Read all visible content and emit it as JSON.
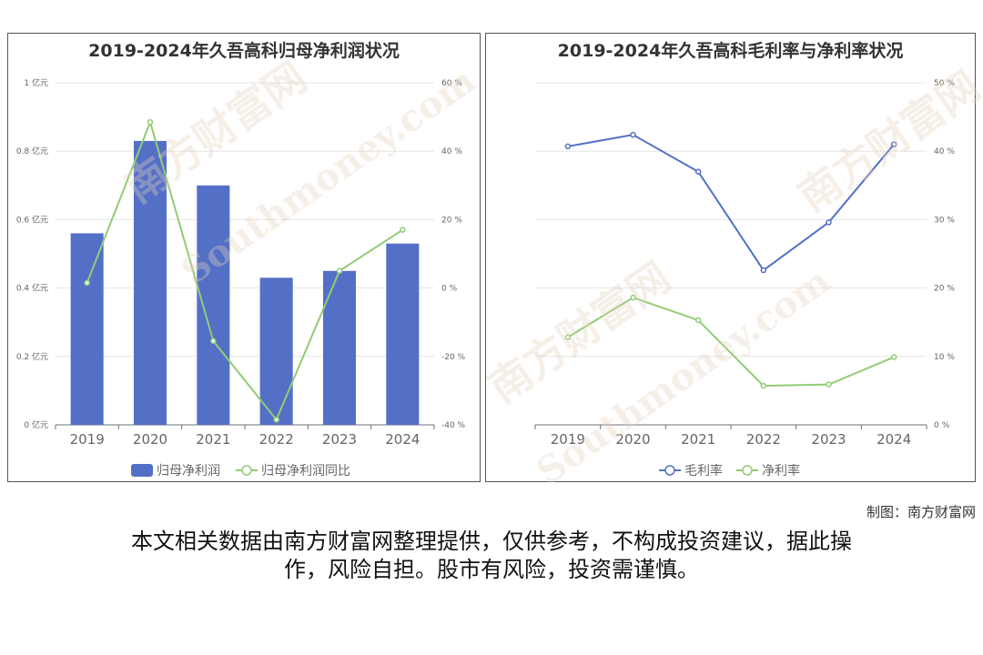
{
  "chart_data": [
    {
      "type": "bar",
      "title": "2019-2024年久吾高科归母净利润状况",
      "categories": [
        "2019",
        "2020",
        "2021",
        "2022",
        "2023",
        "2024"
      ],
      "series": [
        {
          "name": "归母净利润",
          "type": "bar",
          "axis": "left",
          "values": [
            0.56,
            0.83,
            0.7,
            0.43,
            0.45,
            0.53
          ],
          "color": "#5470c6"
        },
        {
          "name": "归母净利润同比",
          "type": "line",
          "axis": "right",
          "values": [
            1.5,
            48.5,
            -15.5,
            -38.5,
            5,
            17
          ],
          "color": "#91cc75"
        }
      ],
      "left_axis": {
        "ticks": [
          "0 亿元",
          "0.2 亿元",
          "0.4 亿元",
          "0.6 亿元",
          "0.8 亿元",
          "1 亿元"
        ],
        "ylim": [
          0,
          1
        ]
      },
      "right_axis": {
        "ticks": [
          "-40 %",
          "-20 %",
          "0 %",
          "20 %",
          "40 %",
          "60 %"
        ],
        "ylim": [
          -40,
          60
        ]
      },
      "grid": true,
      "legend": "bottom"
    },
    {
      "type": "line",
      "title": "2019-2024年久吾高科毛利率与净利率状况",
      "categories": [
        "2019",
        "2020",
        "2021",
        "2022",
        "2023",
        "2024"
      ],
      "series": [
        {
          "name": "毛利率",
          "axis": "right",
          "values": [
            40.7,
            42.4,
            37.0,
            22.6,
            29.6,
            41.0
          ],
          "color": "#5470c6"
        },
        {
          "name": "净利率",
          "axis": "right",
          "values": [
            12.8,
            18.6,
            15.3,
            5.7,
            5.9,
            9.9
          ],
          "color": "#91cc75"
        }
      ],
      "right_axis": {
        "ticks": [
          "0 %",
          "10 %",
          "20 %",
          "30 %",
          "40 %",
          "50 %"
        ],
        "ylim": [
          0,
          50
        ]
      },
      "grid": true,
      "legend": "bottom"
    }
  ],
  "watermark": {
    "brand": "南方财富网",
    "url": "Southmoney.com"
  },
  "footer": {
    "credit": "制图：南方财富网",
    "disclaimer_line1": "本文相关数据由南方财富网整理提供，仅供参考，不构成投资建议，据此操",
    "disclaimer_line2": "作，风险自担。股市有风险，投资需谨慎。"
  }
}
